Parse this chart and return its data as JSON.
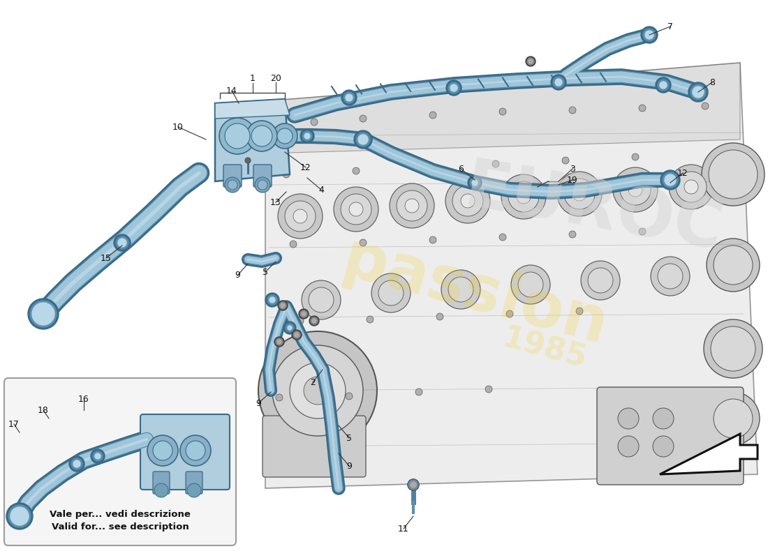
{
  "bg": "#ffffff",
  "tc": "#9fc5d8",
  "tc2": "#b8d8ea",
  "td": "#5a8fac",
  "te": "#3a6a88",
  "ec": "#e2e2e2",
  "ee": "#555555",
  "cf": "#b0cede",
  "ce": "#3a6a88",
  "lc": "#444444",
  "cc": "#111111",
  "wm1": "passion",
  "wm2": "1985",
  "wml": "EUROC",
  "it1": "Vale per... vedi descrizione",
  "it2": "Valid for... see description",
  "fw": 11.0,
  "fh": 8.0,
  "dpi": 100
}
